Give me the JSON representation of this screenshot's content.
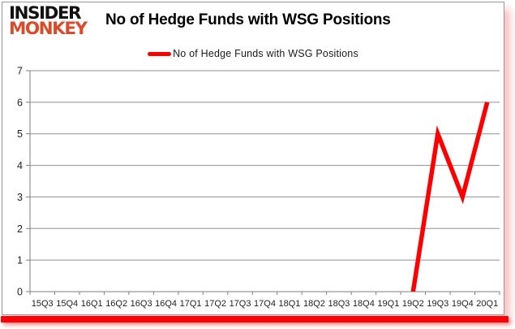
{
  "header": {
    "logo_line1": "INSIDER",
    "logo_line2": "MONKEY",
    "title": "No of Hedge Funds with WSG Positions"
  },
  "legend": {
    "label": "No of Hedge Funds with WSG Positions"
  },
  "chart_data": {
    "type": "line",
    "title": "No of Hedge Funds with WSG Positions",
    "categories": [
      "15Q3",
      "15Q4",
      "16Q1",
      "16Q2",
      "16Q3",
      "16Q4",
      "17Q1",
      "17Q2",
      "17Q3",
      "17Q4",
      "18Q1",
      "18Q2",
      "18Q3",
      "18Q4",
      "19Q1",
      "19Q2",
      "19Q3",
      "19Q4",
      "20Q1"
    ],
    "series": [
      {
        "name": "No of Hedge Funds with WSG Positions",
        "color": "#ff0000",
        "values": [
          null,
          null,
          null,
          null,
          null,
          null,
          null,
          null,
          null,
          null,
          null,
          null,
          null,
          null,
          null,
          0,
          5,
          3,
          6
        ]
      }
    ],
    "xlabel": "",
    "ylabel": "",
    "ylim": [
      0,
      7
    ],
    "ytick_step": 1,
    "grid": "horizontal",
    "legend_position": "top-center"
  },
  "colors": {
    "accent_red": "#ff0000",
    "logo_orange": "#d94b2a",
    "bottom_bar_red": "#fb0207",
    "grid_gray": "#8f8f8f",
    "axis_gray": "#7f7f7f",
    "label_dark": "#1f1f1f"
  }
}
